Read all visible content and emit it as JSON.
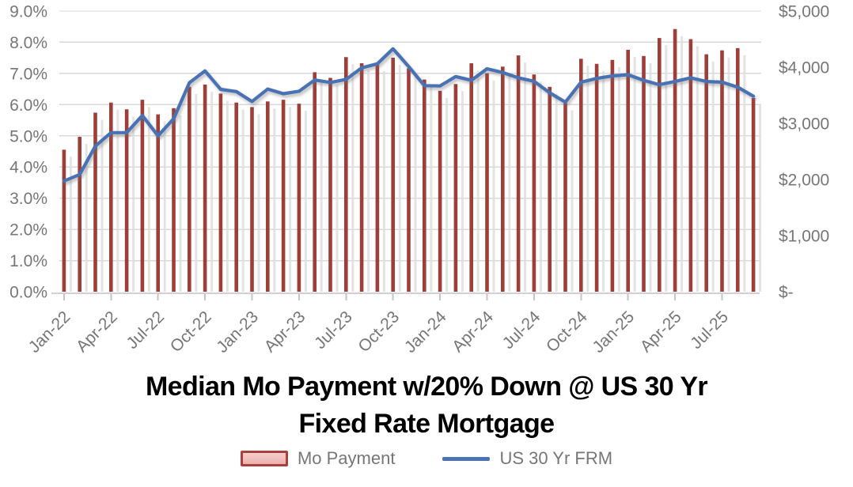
{
  "title": {
    "line1": "Median Mo Payment w/20% Down @ US 30 Yr",
    "line2": "Fixed Rate Mortgage"
  },
  "legend": [
    {
      "label": "Mo Payment",
      "swatch": "bar-swatch"
    },
    {
      "label": "US 30 Yr FRM",
      "swatch": "line-swatch"
    }
  ],
  "colors": {
    "bar": "#9E3E39",
    "bar_shadow": "#DEDEDE",
    "line": "#4A72B5",
    "line_shadow": "#6E6E6E",
    "grid": "#D9D9D9",
    "axis_line": "#D2D0D0",
    "tick": "#C6C4C4",
    "axis_text": "#767676",
    "title_text": "#000000",
    "legend_swatch_fill": "#F3C6C3",
    "legend_swatch_border": "#A6423E"
  },
  "chart_data": {
    "type": "combo",
    "title": "Median Mo Payment w/20% Down @ US 30 Yr Fixed Rate Mortgage",
    "categories": [
      "Jan-22",
      "Feb-22",
      "Mar-22",
      "Apr-22",
      "May-22",
      "Jun-22",
      "Jul-22",
      "Aug-22",
      "Sep-22",
      "Oct-22",
      "Nov-22",
      "Dec-22",
      "Jan-23",
      "Feb-23",
      "Mar-23",
      "Apr-23",
      "May-23",
      "Jun-23",
      "Jul-23",
      "Aug-23",
      "Sep-23",
      "Oct-23",
      "Nov-23",
      "Dec-23",
      "Jan-24",
      "Feb-24",
      "Mar-24",
      "Apr-24",
      "May-24",
      "Jun-24",
      "Jul-24",
      "Aug-24",
      "Sep-24",
      "Oct-24",
      "Nov-24",
      "Dec-24",
      "Jan-25",
      "Feb-25",
      "Mar-25",
      "Apr-25",
      "May-25",
      "Jun-25",
      "Jul-25",
      "Aug-25",
      "Sep-25"
    ],
    "x_tick_labels": [
      "Jan-22",
      "Apr-22",
      "Jul-22",
      "Oct-22",
      "Jan-23",
      "Apr-23",
      "Jul-23",
      "Oct-23",
      "Jan-24",
      "Apr-24",
      "Jul-24",
      "Oct-24",
      "Jan-25",
      "Apr-25",
      "Jul-25"
    ],
    "x_tick_every": 3,
    "series": [
      {
        "name": "Mo Payment",
        "type": "bar",
        "axis": "right",
        "unit": "USD per month",
        "values": [
          2530,
          2760,
          3190,
          3370,
          3250,
          3420,
          3160,
          3270,
          3650,
          3690,
          3530,
          3370,
          3290,
          3390,
          3420,
          3350,
          3910,
          3810,
          4180,
          4070,
          4060,
          4170,
          3980,
          3780,
          3580,
          3700,
          4070,
          3890,
          4010,
          4210,
          3870,
          3650,
          3360,
          4150,
          4060,
          4130,
          4310,
          4200,
          4520,
          4680,
          4500,
          4230,
          4300,
          4340,
          3450
        ]
      },
      {
        "name": "US 30 Yr FRM",
        "type": "line",
        "axis": "left",
        "unit": "percent",
        "values": [
          3.55,
          3.76,
          4.67,
          5.1,
          5.1,
          5.65,
          5.0,
          5.55,
          6.7,
          7.08,
          6.49,
          6.42,
          6.1,
          6.5,
          6.35,
          6.43,
          6.79,
          6.71,
          6.81,
          7.18,
          7.31,
          7.79,
          7.22,
          6.61,
          6.6,
          6.9,
          6.78,
          7.15,
          7.03,
          6.86,
          6.75,
          6.38,
          6.08,
          6.72,
          6.84,
          6.92,
          6.96,
          6.78,
          6.64,
          6.74,
          6.86,
          6.74,
          6.72,
          6.56,
          6.27
        ]
      }
    ],
    "left_axis": {
      "ticks": [
        "9.0%",
        "8.0%",
        "7.0%",
        "6.0%",
        "5.0%",
        "4.0%",
        "3.0%",
        "2.0%",
        "1.0%",
        "0.0%"
      ],
      "min": 0,
      "max": 9
    },
    "right_axis": {
      "ticks": [
        "$5,000",
        "$4,000",
        "$3,000",
        "$2,000",
        "$1,000",
        "$-"
      ],
      "min": 0,
      "max": 5000
    },
    "grid": "horizontal",
    "legend_position": "bottom"
  }
}
